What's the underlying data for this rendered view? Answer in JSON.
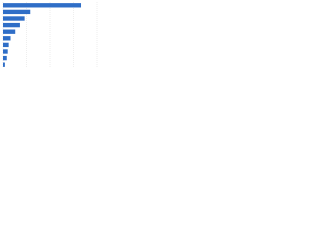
{
  "chart_data": {
    "type": "bar",
    "orientation": "horizontal",
    "categories": [
      null,
      null,
      null,
      null,
      null,
      null,
      null,
      null,
      null,
      null
    ],
    "values": [
      83,
      29,
      23,
      18,
      13,
      8,
      6,
      5,
      4,
      2
    ],
    "color": "#2f6ec7",
    "xlim": [
      0,
      100
    ],
    "xticks": [
      0,
      25,
      50,
      75,
      100
    ],
    "grid": true
  }
}
